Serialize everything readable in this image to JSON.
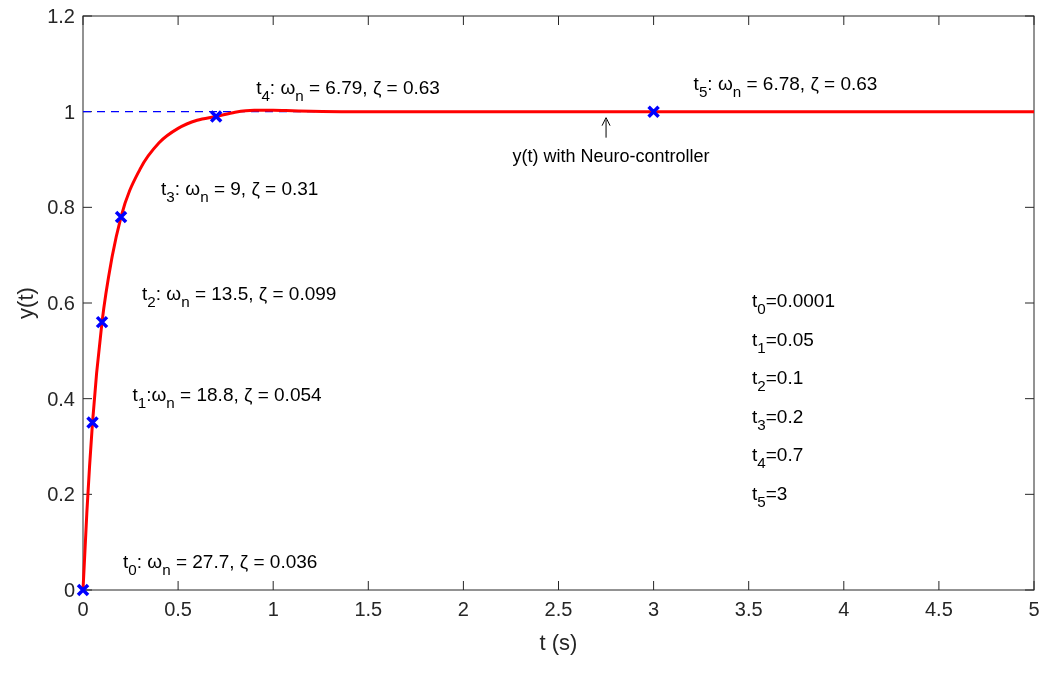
{
  "chart_data": {
    "type": "line",
    "xlabel": "t (s)",
    "ylabel": "y(t)",
    "xlim": [
      0,
      5
    ],
    "xticks": [
      0,
      0.5,
      1,
      1.5,
      2,
      2.5,
      3,
      3.5,
      4,
      4.5,
      5
    ],
    "ylim": [
      0,
      1.2
    ],
    "yticks": [
      0,
      0.2,
      0.4,
      0.6,
      0.8,
      1,
      1.2
    ],
    "grid": false,
    "ref_lines": [
      {
        "axis": "y",
        "value": 1,
        "color": "#0000ff",
        "line_style": "dashed"
      }
    ],
    "series": [
      {
        "color": "#ff0000",
        "marker": "none",
        "line_style": "solid",
        "x": [
          0,
          0.02,
          0.05,
          0.1,
          0.15,
          0.2,
          0.3,
          0.4,
          0.5,
          0.6,
          0.7,
          0.8,
          0.9,
          1.0,
          1.1,
          1.2,
          1.4,
          1.6,
          2,
          3,
          5
        ],
        "values": [
          0,
          0.16,
          0.35,
          0.56,
          0.69,
          0.78,
          0.88,
          0.935,
          0.965,
          0.982,
          0.99,
          0.999,
          1.003,
          1.003,
          1.002,
          1.001,
          1.0,
          1.0,
          1.0,
          1.0,
          1.0
        ]
      },
      {
        "type": "scatter",
        "color": "#0000ff",
        "marker": "cross",
        "x": [
          0.0001,
          0.05,
          0.1,
          0.2,
          0.7,
          3
        ],
        "values": [
          0,
          0.35,
          0.56,
          0.78,
          0.99,
          1
        ]
      }
    ],
    "annotations": [
      {
        "text": "t$_{0}$: ω$_{n}$ = 27.7, ζ = 0.036",
        "x": 0.0001,
        "y": 0
      },
      {
        "text": "t$_{1}$:ω$_{n}$ = 18.8, ζ = 0.054",
        "x": 0.05,
        "y": 0.35
      },
      {
        "text": "t$_{2}$: ω$_{n}$ = 13.5, ζ = 0.099",
        "x": 0.1,
        "y": 0.56
      },
      {
        "text": "t$_{3}$: ω$_{n}$ = 9, ζ = 0.31",
        "x": 0.2,
        "y": 0.78
      },
      {
        "text": "t$_{4}$: ω$_{n}$ = 6.79, ζ = 0.63",
        "x": 0.7,
        "y": 0.99
      },
      {
        "text": "t$_{5}$: ω$_{n}$ = 6.78, ζ = 0.63",
        "x": 3,
        "y": 1
      },
      {
        "text": "y(t) with Neuro-controller",
        "x": 2.75,
        "y": 1
      },
      "t$_{0}$=0.0001",
      "t$_{1}$=0.05",
      "t$_{2}$=0.1",
      "t$_{3}$=0.2",
      "t$_{4}$=0.7",
      "t$_{5}$=3"
    ]
  }
}
